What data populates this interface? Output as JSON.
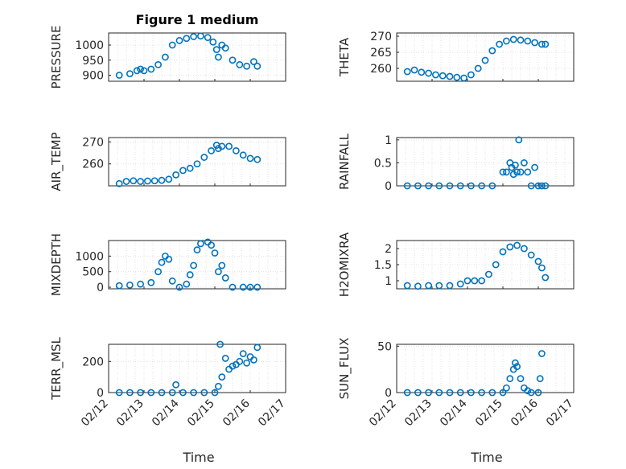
{
  "figure": {
    "title": "Figure 1 medium",
    "marker_color": "#0072BD"
  },
  "chart_data": [
    {
      "type": "scatter",
      "ylabel": "PRESSURE",
      "ylim": [
        880,
        1040
      ],
      "yticks": [
        "900",
        "950",
        "1000"
      ],
      "ytick_values": [
        900,
        950,
        1000
      ],
      "xlim": [
        0,
        5
      ],
      "title": "Figure 1 medium",
      "x": [
        0.3,
        0.6,
        0.8,
        0.9,
        1.0,
        1.2,
        1.4,
        1.6,
        1.8,
        2.0,
        2.2,
        2.4,
        2.6,
        2.8,
        2.95,
        3.05,
        3.1,
        3.2,
        3.3,
        3.5,
        3.7,
        3.9,
        4.1,
        4.2
      ],
      "y": [
        900,
        905,
        915,
        920,
        915,
        920,
        935,
        960,
        1000,
        1015,
        1022,
        1028,
        1030,
        1025,
        1010,
        985,
        960,
        1000,
        990,
        950,
        935,
        930,
        945,
        930
      ]
    },
    {
      "type": "scatter",
      "ylabel": "THETA",
      "ylim": [
        256,
        271
      ],
      "yticks": [
        "260",
        "265",
        "270"
      ],
      "ytick_values": [
        260,
        265,
        270
      ],
      "xlim": [
        0,
        5
      ],
      "x": [
        0.3,
        0.5,
        0.7,
        0.9,
        1.1,
        1.3,
        1.5,
        1.7,
        1.9,
        2.1,
        2.3,
        2.5,
        2.7,
        2.9,
        3.1,
        3.3,
        3.5,
        3.7,
        3.9,
        4.1,
        4.2
      ],
      "y": [
        259,
        259.5,
        258.8,
        258.5,
        258,
        257.7,
        257.5,
        257.2,
        257,
        258,
        260,
        262.5,
        265.5,
        267.5,
        268.5,
        269,
        268.8,
        268.5,
        268,
        267.5,
        267.5
      ]
    },
    {
      "type": "scatter",
      "ylabel": "AIR_TEMP",
      "ylim": [
        250,
        272
      ],
      "yticks": [
        "260",
        "270"
      ],
      "ytick_values": [
        260,
        270
      ],
      "xlim": [
        0,
        5
      ],
      "x": [
        0.3,
        0.5,
        0.7,
        0.9,
        1.1,
        1.3,
        1.5,
        1.7,
        1.9,
        2.1,
        2.3,
        2.5,
        2.7,
        2.9,
        3.05,
        3.1,
        3.2,
        3.4,
        3.6,
        3.8,
        4.0,
        4.2
      ],
      "y": [
        251,
        252,
        252.3,
        252,
        252.2,
        252.3,
        252.5,
        253,
        255,
        257,
        258,
        260,
        263,
        266,
        268.5,
        267,
        268,
        268,
        266,
        264,
        262.5,
        262
      ]
    },
    {
      "type": "scatter",
      "ylabel": "RAINFALL",
      "ylim": [
        0,
        1.05
      ],
      "yticks": [
        "0",
        "0.5",
        "1"
      ],
      "ytick_values": [
        0,
        0.5,
        1
      ],
      "xlim": [
        0,
        5
      ],
      "x": [
        0.3,
        0.6,
        0.9,
        1.2,
        1.5,
        1.8,
        2.1,
        2.4,
        2.7,
        3.0,
        3.1,
        3.2,
        3.25,
        3.3,
        3.35,
        3.4,
        3.45,
        3.5,
        3.6,
        3.7,
        3.8,
        3.9,
        4.0,
        4.1,
        4.2
      ],
      "y": [
        0,
        0,
        0,
        0,
        0,
        0,
        0,
        0,
        0,
        0.3,
        0.3,
        0.5,
        0.4,
        0.25,
        0.45,
        0.3,
        1.0,
        0.3,
        0.5,
        0.3,
        0,
        0.4,
        0,
        0,
        0
      ]
    },
    {
      "type": "scatter",
      "ylabel": "MIXDEPTH",
      "ylim": [
        -50,
        1500
      ],
      "yticks": [
        "0",
        "500",
        "1000"
      ],
      "ytick_values": [
        0,
        500,
        1000
      ],
      "xlim": [
        0,
        5
      ],
      "x": [
        0.3,
        0.6,
        0.9,
        1.2,
        1.4,
        1.5,
        1.6,
        1.7,
        1.8,
        2.0,
        2.2,
        2.3,
        2.4,
        2.5,
        2.6,
        2.8,
        2.9,
        3.0,
        3.1,
        3.2,
        3.3,
        3.5,
        3.8,
        4.0,
        4.2
      ],
      "y": [
        50,
        70,
        100,
        150,
        500,
        800,
        1000,
        900,
        200,
        0,
        100,
        400,
        700,
        1200,
        1400,
        1450,
        1350,
        1100,
        500,
        700,
        300,
        0,
        0,
        0,
        0
      ]
    },
    {
      "type": "scatter",
      "ylabel": "H2OMIXRA",
      "ylim": [
        0.75,
        2.25
      ],
      "yticks": [
        "1",
        "1.5",
        "2"
      ],
      "ytick_values": [
        1,
        1.5,
        2
      ],
      "xlim": [
        0,
        5
      ],
      "x": [
        0.3,
        0.6,
        0.9,
        1.2,
        1.5,
        1.8,
        2.0,
        2.2,
        2.4,
        2.6,
        2.8,
        3.0,
        3.2,
        3.4,
        3.6,
        3.8,
        4.0,
        4.1,
        4.2
      ],
      "y": [
        0.85,
        0.83,
        0.85,
        0.85,
        0.85,
        0.9,
        1.0,
        1.0,
        1.0,
        1.2,
        1.5,
        1.9,
        2.05,
        2.1,
        2.0,
        1.8,
        1.6,
        1.4,
        1.1
      ]
    },
    {
      "type": "scatter",
      "ylabel": "TERR_MSL",
      "ylim": [
        0,
        310
      ],
      "yticks": [
        "0",
        "200"
      ],
      "ytick_values": [
        0,
        200
      ],
      "xlim": [
        0,
        5
      ],
      "x": [
        0.3,
        0.6,
        0.9,
        1.2,
        1.5,
        1.8,
        1.9,
        2.1,
        2.4,
        2.7,
        3.0,
        3.1,
        3.15,
        3.2,
        3.3,
        3.4,
        3.5,
        3.6,
        3.7,
        3.8,
        3.9,
        4.0,
        4.1,
        4.2
      ],
      "y": [
        0,
        0,
        0,
        0,
        0,
        0,
        50,
        0,
        0,
        0,
        0,
        40,
        310,
        100,
        220,
        150,
        170,
        180,
        200,
        250,
        190,
        230,
        210,
        290
      ]
    },
    {
      "type": "scatter",
      "ylabel": "SUN_FLUX",
      "ylim": [
        0,
        52
      ],
      "yticks": [
        "0",
        "50"
      ],
      "ytick_values": [
        0,
        50
      ],
      "xlim": [
        0,
        5
      ],
      "x": [
        0.3,
        0.6,
        0.9,
        1.2,
        1.5,
        1.8,
        2.1,
        2.4,
        2.7,
        3.0,
        3.1,
        3.2,
        3.3,
        3.35,
        3.4,
        3.5,
        3.6,
        3.7,
        3.8,
        4.0,
        4.05,
        4.1
      ],
      "y": [
        0,
        0,
        0,
        0,
        0,
        0,
        0,
        0,
        0,
        0,
        5,
        15,
        25,
        32,
        28,
        15,
        5,
        2,
        0,
        0,
        15,
        42
      ]
    }
  ],
  "xticks": [
    "02/12",
    "02/13",
    "02/14",
    "02/15",
    "02/16",
    "02/17"
  ],
  "xlabel": "Time"
}
